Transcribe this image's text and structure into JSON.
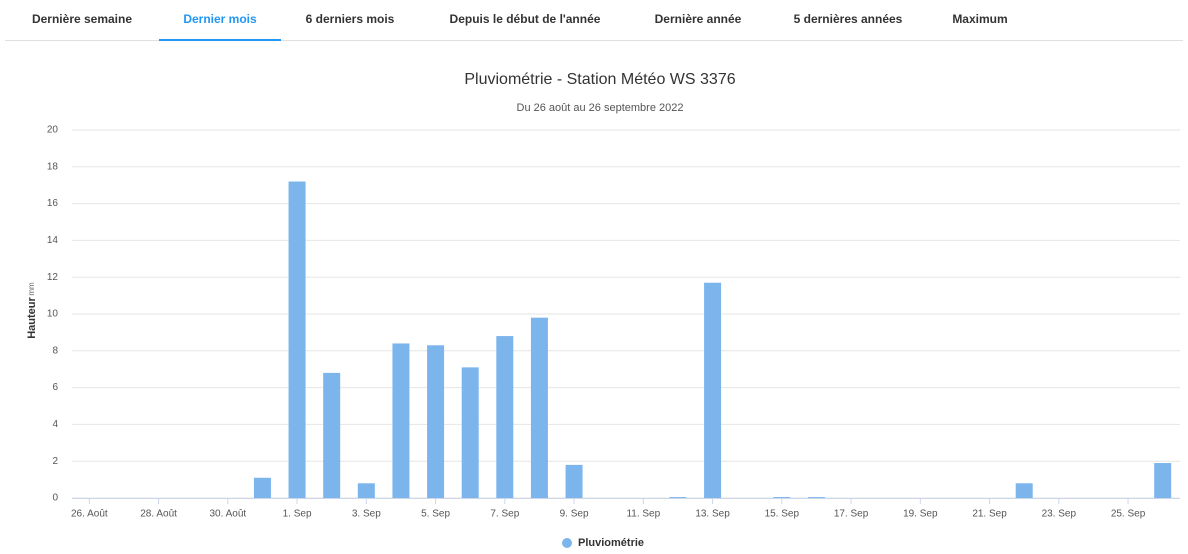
{
  "tabs": [
    "Dernière semaine",
    "Dernier mois",
    "6 derniers mois",
    "Depuis le début de l'année",
    "Dernière année",
    "5 dernières années",
    "Maximum"
  ],
  "active_tab": 1,
  "chart_data": {
    "type": "bar",
    "title": "Pluviométrie - Station Météo WS 3376",
    "subtitle": "Du 26 août au 26 septembre 2022",
    "y_label": "Hauteur",
    "y_unit": "mm",
    "categories": [
      "26. Août",
      null,
      "28. Août",
      null,
      "30. Août",
      null,
      "1. Sep",
      null,
      "3. Sep",
      null,
      "5. Sep",
      null,
      "7. Sep",
      null,
      "9. Sep",
      null,
      "11. Sep",
      null,
      "13. Sep",
      null,
      "15. Sep",
      null,
      "17. Sep",
      null,
      "19. Sep",
      null,
      "21. Sep",
      null,
      "23. Sep",
      null,
      "25. Sep",
      null
    ],
    "series": [
      {
        "name": "Pluviométrie",
        "color": "#7cb5ec",
        "values": [
          0,
          0,
          0,
          0,
          0,
          1.1,
          17.2,
          6.8,
          0.8,
          8.4,
          8.3,
          7.1,
          8.8,
          9.8,
          1.8,
          0,
          0,
          0.05,
          11.7,
          0,
          0.05,
          0.05,
          0,
          0,
          0,
          0,
          0,
          0.8,
          0,
          0,
          0,
          1.9
        ]
      }
    ],
    "ylim": [
      0,
      20
    ],
    "yticks": [
      0,
      2,
      4,
      6,
      8,
      10,
      12,
      14,
      16,
      18,
      20
    ],
    "grid": true,
    "legend": "bottom"
  }
}
